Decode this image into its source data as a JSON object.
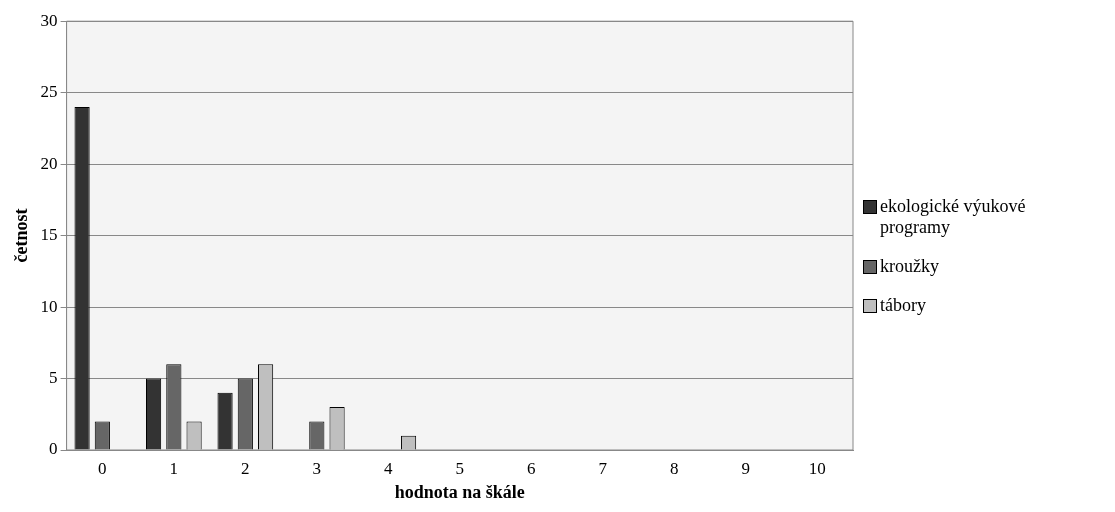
{
  "chart_data": {
    "type": "bar",
    "xlabel": "hodnota na škále",
    "ylabel": "četnost",
    "categories": [
      "0",
      "1",
      "2",
      "3",
      "4",
      "5",
      "6",
      "7",
      "8",
      "9",
      "10"
    ],
    "series": [
      {
        "name": "ekologické výukové programy",
        "color": "#333333",
        "values": [
          24,
          5,
          4,
          0,
          0,
          0,
          0,
          0,
          0,
          0,
          0
        ]
      },
      {
        "name": "kroužky",
        "color": "#666666",
        "values": [
          2,
          6,
          5,
          2,
          0,
          0,
          0,
          0,
          0,
          0,
          0
        ]
      },
      {
        "name": "tábory",
        "color": "#bfbfbf",
        "values": [
          0,
          2,
          6,
          3,
          1,
          0,
          0,
          0,
          0,
          0,
          0
        ]
      }
    ],
    "ylim": [
      0,
      30
    ],
    "yticks": [
      0,
      5,
      10,
      15,
      20,
      25,
      30
    ],
    "grid": "y",
    "legend": "right"
  }
}
